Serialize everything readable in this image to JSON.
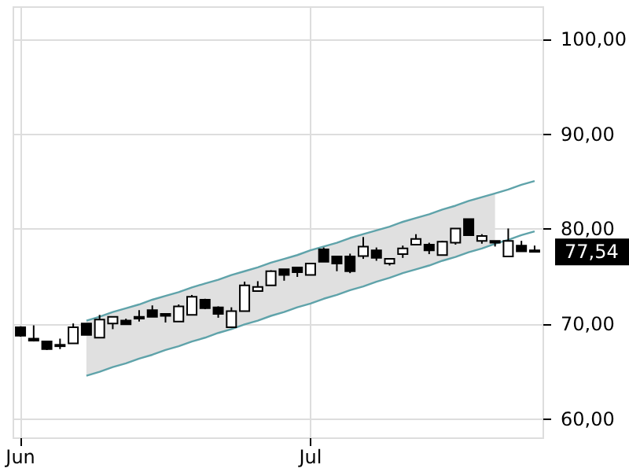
{
  "chart_data": {
    "type": "candlestick",
    "color": "#000000",
    "categories": [
      "Jun",
      null,
      null,
      null,
      null,
      null,
      null,
      null,
      null,
      null,
      null,
      null,
      null,
      null,
      null,
      null,
      null,
      null,
      null,
      null,
      null,
      null,
      "Jul",
      null,
      null,
      null,
      null,
      null,
      null,
      null,
      null,
      null,
      null,
      null,
      null,
      null,
      null,
      null,
      null,
      null
    ],
    "ohlc": [
      [
        69.6,
        69.7,
        68.6,
        68.7
      ],
      [
        68.4,
        69.8,
        68.1,
        68.2
      ],
      [
        68.1,
        68.1,
        67.2,
        67.3
      ],
      [
        67.75,
        68.4,
        67.3,
        67.6
      ],
      [
        67.9,
        70.0,
        67.9,
        69.6
      ],
      [
        70.0,
        70.0,
        68.8,
        68.8
      ],
      [
        68.5,
        70.9,
        68.5,
        70.4
      ],
      [
        70.0,
        70.7,
        69.4,
        70.7
      ],
      [
        70.3,
        70.5,
        69.9,
        69.9
      ],
      [
        70.7,
        71.4,
        70.2,
        70.5
      ],
      [
        71.4,
        71.9,
        70.7,
        70.7
      ],
      [
        71.0,
        71.0,
        70.1,
        70.8
      ],
      [
        70.2,
        72.0,
        70.2,
        71.8
      ],
      [
        70.9,
        73.0,
        70.9,
        72.8
      ],
      [
        72.5,
        72.6,
        71.5,
        71.6
      ],
      [
        71.7,
        71.8,
        70.6,
        71.0
      ],
      [
        69.6,
        71.7,
        69.6,
        71.3
      ],
      [
        71.3,
        74.4,
        71.3,
        74.0
      ],
      [
        73.4,
        74.45,
        73.4,
        73.85
      ],
      [
        74.0,
        75.6,
        74.0,
        75.5
      ],
      [
        75.7,
        75.7,
        74.5,
        75.1
      ],
      [
        75.9,
        75.9,
        74.9,
        75.4
      ],
      [
        75.1,
        76.3,
        75.1,
        76.3
      ],
      [
        77.8,
        78.0,
        76.5,
        76.5
      ],
      [
        77.05,
        77.1,
        75.5,
        76.3
      ],
      [
        77.05,
        77.35,
        75.3,
        75.5
      ],
      [
        77.1,
        79.1,
        76.8,
        78.1
      ],
      [
        77.7,
        78.0,
        76.6,
        76.9
      ],
      [
        76.3,
        76.8,
        76.1,
        76.8
      ],
      [
        77.3,
        78.2,
        76.9,
        77.9
      ],
      [
        78.3,
        79.4,
        78.3,
        78.9
      ],
      [
        78.3,
        78.5,
        77.3,
        77.7
      ],
      [
        77.2,
        78.7,
        77.2,
        78.6
      ],
      [
        78.5,
        80.0,
        78.3,
        80.0
      ],
      [
        81.0,
        81.0,
        79.3,
        79.3
      ],
      [
        78.7,
        79.4,
        78.4,
        79.2
      ],
      [
        78.7,
        78.7,
        78.1,
        78.5
      ],
      [
        77.05,
        80.0,
        77.05,
        78.7
      ],
      [
        78.2,
        78.7,
        77.6,
        77.6
      ],
      [
        77.7,
        78.2,
        77.5,
        77.54
      ]
    ],
    "series": [
      {
        "type": "line",
        "color": "#5fa3aa",
        "lower": [
          null,
          null,
          null,
          null,
          null,
          64.5,
          64.9,
          65.4,
          65.8,
          66.3,
          66.7,
          67.2,
          67.6,
          68.1,
          68.5,
          69.0,
          69.4,
          69.9,
          70.3,
          70.8,
          71.2,
          71.7,
          72.1,
          72.6,
          73.0,
          73.5,
          73.9,
          74.4,
          74.8,
          75.3,
          75.7,
          76.1,
          76.6,
          77.0,
          77.5,
          77.9,
          78.4,
          null,
          null,
          null
        ],
        "upper": [
          null,
          null,
          null,
          null,
          null,
          70.3,
          70.7,
          71.2,
          71.6,
          72.0,
          72.5,
          72.9,
          73.3,
          73.8,
          74.2,
          74.6,
          75.1,
          75.5,
          75.9,
          76.4,
          76.8,
          77.2,
          77.7,
          78.1,
          78.5,
          79.0,
          79.4,
          79.8,
          80.2,
          80.7,
          81.1,
          81.5,
          82.0,
          82.4,
          82.9,
          83.3,
          83.7,
          null,
          null,
          null
        ],
        "values": [
          null,
          null,
          null,
          null,
          null,
          70.3,
          70.7,
          71.2,
          71.6,
          72.0,
          72.5,
          72.9,
          73.3,
          73.8,
          74.2,
          74.6,
          75.1,
          75.5,
          75.9,
          76.4,
          76.8,
          77.2,
          77.7,
          78.1,
          78.5,
          79.0,
          79.4,
          79.8,
          80.2,
          80.7,
          81.1,
          81.5,
          82.0,
          82.4,
          82.9,
          83.3,
          83.7,
          84.1,
          84.6,
          85.0
        ]
      },
      {
        "type": "line",
        "color": "#5fa3aa",
        "values": [
          null,
          null,
          null,
          null,
          null,
          64.5,
          64.9,
          65.4,
          65.8,
          66.3,
          66.7,
          67.2,
          67.6,
          68.1,
          68.5,
          69.0,
          69.4,
          69.9,
          70.3,
          70.8,
          71.2,
          71.7,
          72.1,
          72.6,
          73.0,
          73.5,
          73.9,
          74.4,
          74.8,
          75.3,
          75.7,
          76.1,
          76.6,
          77.0,
          77.5,
          77.9,
          78.4,
          78.8,
          79.3,
          79.7
        ]
      }
    ],
    "annotations": [
      "77,54"
    ],
    "ylim": [
      58,
      103.4
    ],
    "yticks": [
      {
        "value": 60,
        "label": "60,00"
      },
      {
        "value": 70,
        "label": "70,00"
      },
      {
        "value": 80,
        "label": "80,00"
      },
      {
        "value": 90,
        "label": "90,00"
      },
      {
        "value": 100,
        "label": "100,00"
      }
    ],
    "grid": true
  }
}
